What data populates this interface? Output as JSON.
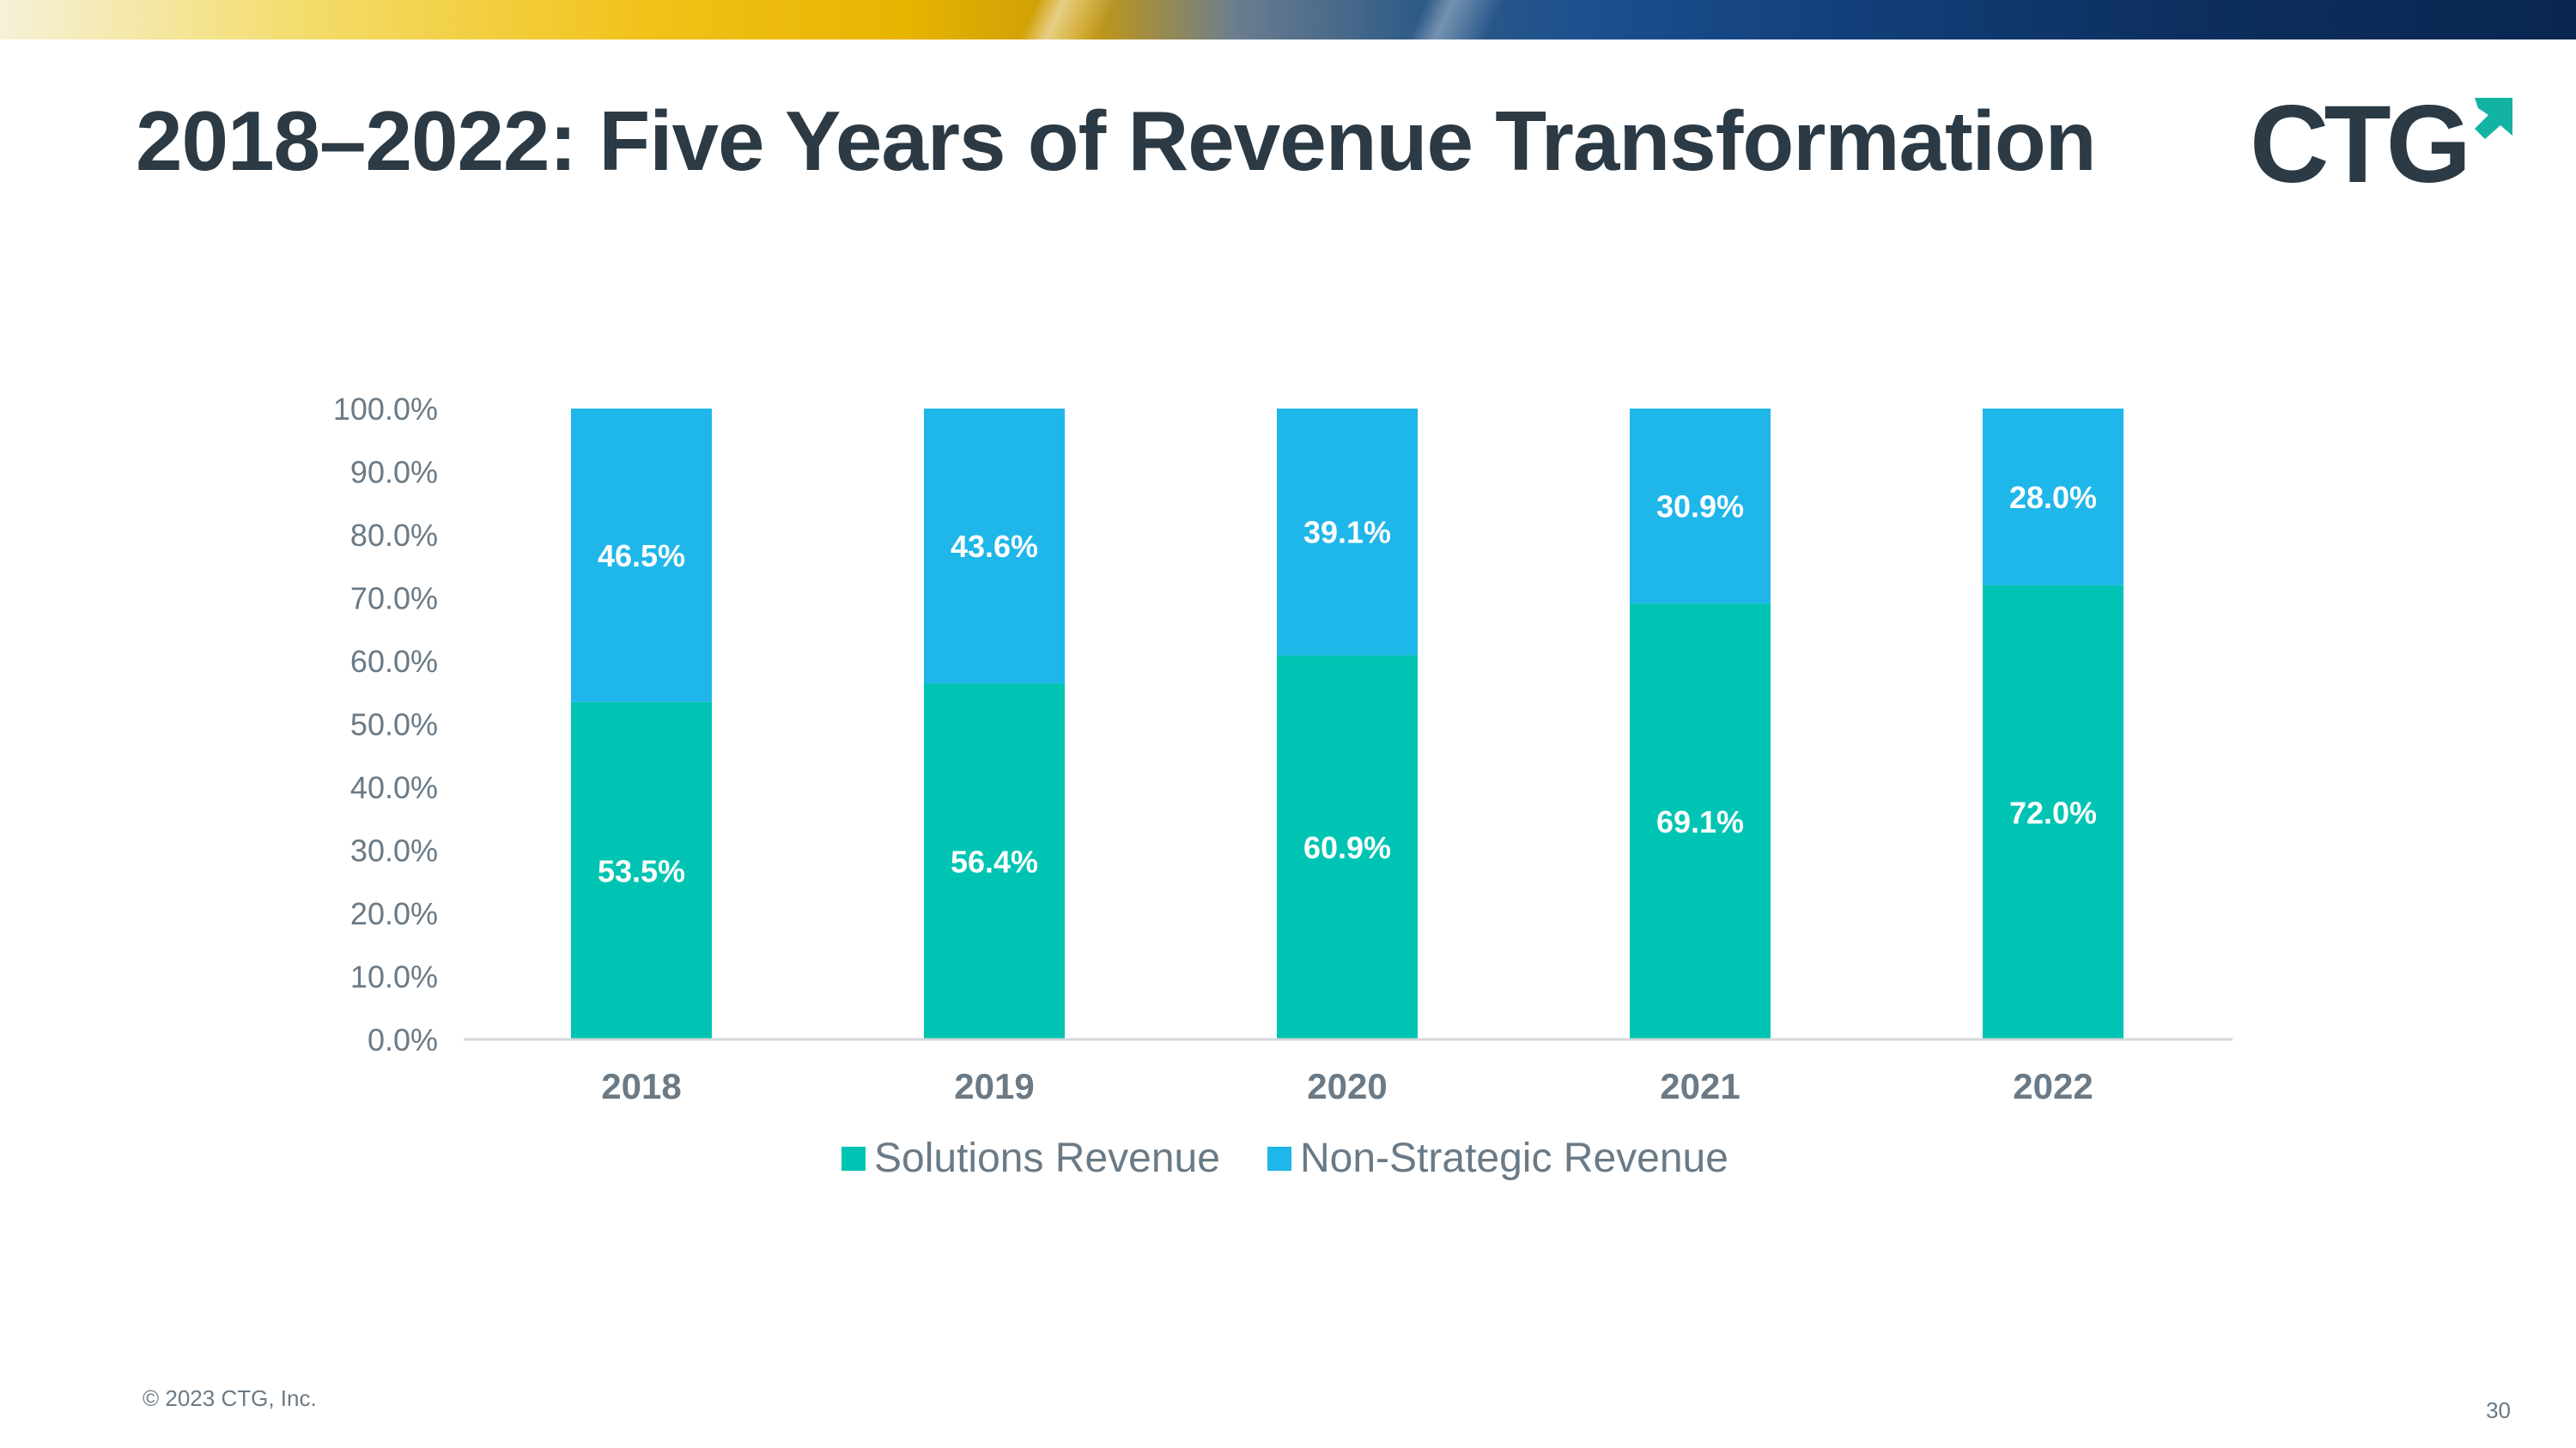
{
  "slide": {
    "title": "2018–2022: Five Years of Revenue Transformation",
    "logo_text": "CTG",
    "copyright": "© 2023 CTG, Inc.",
    "page_number": "30"
  },
  "colors": {
    "solutions": "#00c4b3",
    "non_strategic": "#1fb6ea",
    "title": "#2b3a45",
    "axis_text": "#6a7a86",
    "logo": "#2b3a45",
    "logo_accent": "#12b3a3"
  },
  "chart_data": {
    "type": "bar",
    "stacked": true,
    "categories": [
      "2018",
      "2019",
      "2020",
      "2021",
      "2022"
    ],
    "series": [
      {
        "name": "Solutions Revenue",
        "values": [
          53.5,
          56.4,
          60.9,
          69.1,
          72.0
        ],
        "labels": [
          "53.5%",
          "56.4%",
          "60.9%",
          "69.1%",
          "72.0%"
        ]
      },
      {
        "name": "Non-Strategic Revenue",
        "values": [
          46.5,
          43.6,
          39.1,
          30.9,
          28.0
        ],
        "labels": [
          "46.5%",
          "43.6%",
          "39.1%",
          "30.9%",
          "28.0%"
        ]
      }
    ],
    "y_ticks": [
      "0.0%",
      "10.0%",
      "20.0%",
      "30.0%",
      "40.0%",
      "50.0%",
      "60.0%",
      "70.0%",
      "80.0%",
      "90.0%",
      "100.0%"
    ],
    "ylim": [
      0,
      100
    ],
    "grid": false,
    "legend_position": "bottom"
  }
}
